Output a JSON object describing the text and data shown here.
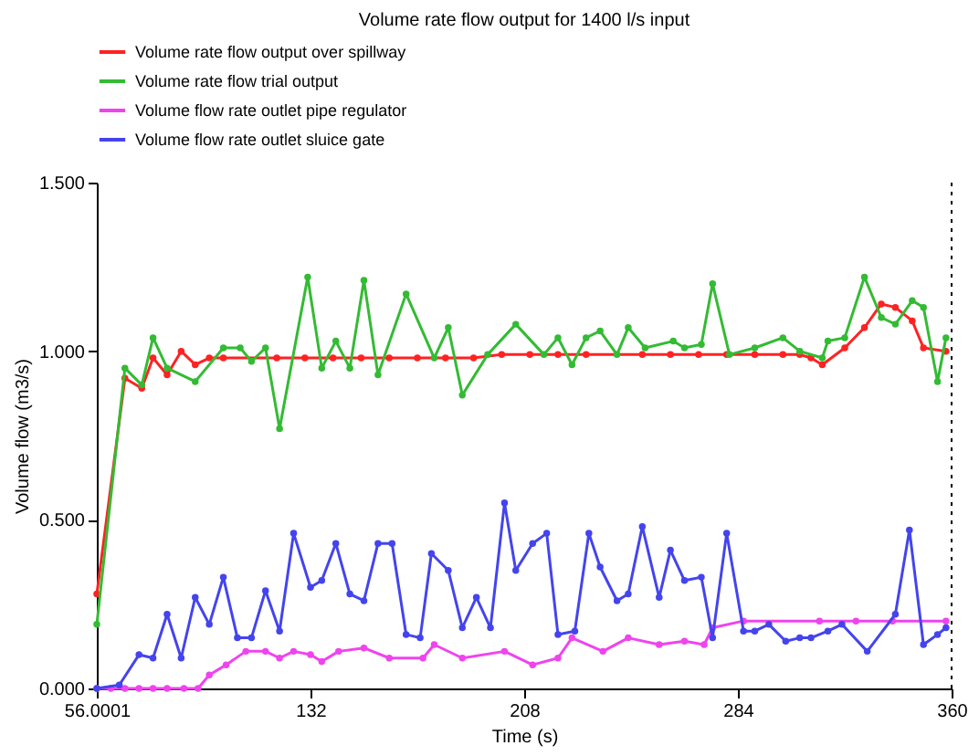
{
  "chart_data": {
    "type": "line",
    "title": "Volume rate flow output for 1400 l/s input",
    "xlabel": "Time (s)",
    "ylabel": "Volume flow (m3/s)",
    "xlim": [
      56.0001,
      360
    ],
    "xticks": [
      56.0001,
      132,
      208,
      284,
      360
    ],
    "ylim": [
      0,
      1.5
    ],
    "yticks": [
      {
        "value": 0,
        "label": "0.000"
      },
      {
        "value": 0.5,
        "label": "0.500"
      },
      {
        "value": 1,
        "label": "1.000"
      },
      {
        "value": 1.5,
        "label": "1.500"
      }
    ],
    "grid": false,
    "legend": "top",
    "marker": "circle",
    "line_style": "solid",
    "ref_lines": [
      {
        "axis": "x",
        "value": 360,
        "line_style": "dotted",
        "color": "#000000"
      }
    ],
    "series": [
      {
        "name": "Volume rate flow output over spillway",
        "color": "#ff2222",
        "x": [
          56.0001,
          66,
          72,
          76,
          81,
          86,
          91,
          96,
          101,
          120,
          130,
          140,
          150,
          160,
          170,
          180,
          190,
          200,
          210,
          220,
          230,
          250,
          260,
          270,
          280,
          290,
          300,
          306,
          310,
          314,
          322,
          329,
          335,
          340,
          346,
          350,
          358
        ],
        "values": [
          0.28,
          0.92,
          0.89,
          0.98,
          0.93,
          1.0,
          0.96,
          0.98,
          0.98,
          0.98,
          0.98,
          0.98,
          0.98,
          0.98,
          0.98,
          0.98,
          0.98,
          0.99,
          0.99,
          0.99,
          0.99,
          0.99,
          0.99,
          0.99,
          0.99,
          0.99,
          0.99,
          0.99,
          0.98,
          0.96,
          1.01,
          1.07,
          1.14,
          1.13,
          1.09,
          1.01,
          1.0
        ]
      },
      {
        "name": "Volume rate flow trial output",
        "color": "#33bb33",
        "x": [
          56.0001,
          66,
          72,
          76,
          81,
          91,
          101,
          107,
          111,
          116,
          121,
          131,
          136,
          141,
          146,
          151,
          156,
          166,
          176,
          181,
          186,
          195,
          205,
          215,
          220,
          225,
          230,
          235,
          241,
          245,
          251,
          261,
          265,
          271,
          275,
          281,
          290,
          300,
          306,
          314,
          316,
          322,
          329,
          335,
          340,
          346,
          350,
          355,
          358
        ],
        "values": [
          0.19,
          0.95,
          0.9,
          1.04,
          0.95,
          0.91,
          1.01,
          1.01,
          0.97,
          1.01,
          0.77,
          1.22,
          0.95,
          1.03,
          0.95,
          1.21,
          0.93,
          1.17,
          0.98,
          1.07,
          0.87,
          0.99,
          1.08,
          0.99,
          1.04,
          0.96,
          1.04,
          1.06,
          0.99,
          1.07,
          1.01,
          1.03,
          1.01,
          1.02,
          1.2,
          0.99,
          1.01,
          1.04,
          1.0,
          0.98,
          1.03,
          1.04,
          1.22,
          1.1,
          1.08,
          1.15,
          1.13,
          0.91,
          1.04
        ]
      },
      {
        "name": "Volume flow rate outlet pipe regulator",
        "color": "#ee44ee",
        "x": [
          56.0001,
          61,
          66,
          71,
          76,
          81,
          87,
          92,
          96,
          102,
          109,
          116,
          121,
          126,
          132,
          136,
          142,
          151,
          160,
          172,
          176,
          186,
          201,
          211,
          220,
          225,
          236,
          245,
          256,
          265,
          272,
          275,
          286,
          313,
          326,
          339,
          358
        ],
        "values": [
          0,
          0,
          0,
          0,
          0,
          0,
          0,
          0,
          0.04,
          0.07,
          0.11,
          0.11,
          0.09,
          0.11,
          0.1,
          0.08,
          0.11,
          0.12,
          0.09,
          0.09,
          0.13,
          0.09,
          0.11,
          0.07,
          0.09,
          0.15,
          0.11,
          0.15,
          0.13,
          0.14,
          0.13,
          0.18,
          0.2,
          0.2,
          0.2,
          0.2,
          0.2
        ]
      },
      {
        "name": "Volume flow rate outlet sluice gate",
        "color": "#4444ee",
        "x": [
          56.0001,
          64,
          71,
          76,
          81,
          86,
          91,
          96,
          101,
          106,
          111,
          116,
          121,
          126,
          132,
          136,
          141,
          146,
          151,
          156,
          161,
          166,
          171,
          175,
          181,
          186,
          191,
          196,
          201,
          205,
          211,
          216,
          220,
          226,
          231,
          235,
          241,
          245,
          250,
          256,
          260,
          265,
          271,
          275,
          280,
          286,
          290,
          295,
          301,
          306,
          310,
          316,
          321,
          330,
          340,
          345,
          350,
          355,
          358
        ],
        "values": [
          0,
          0.01,
          0.1,
          0.09,
          0.22,
          0.09,
          0.27,
          0.19,
          0.33,
          0.15,
          0.15,
          0.29,
          0.17,
          0.46,
          0.3,
          0.32,
          0.43,
          0.28,
          0.26,
          0.43,
          0.43,
          0.16,
          0.15,
          0.4,
          0.35,
          0.18,
          0.27,
          0.18,
          0.55,
          0.35,
          0.43,
          0.46,
          0.16,
          0.17,
          0.46,
          0.36,
          0.26,
          0.28,
          0.48,
          0.27,
          0.41,
          0.32,
          0.33,
          0.15,
          0.46,
          0.17,
          0.17,
          0.19,
          0.14,
          0.15,
          0.15,
          0.17,
          0.19,
          0.11,
          0.22,
          0.47,
          0.13,
          0.16,
          0.18
        ]
      }
    ]
  }
}
